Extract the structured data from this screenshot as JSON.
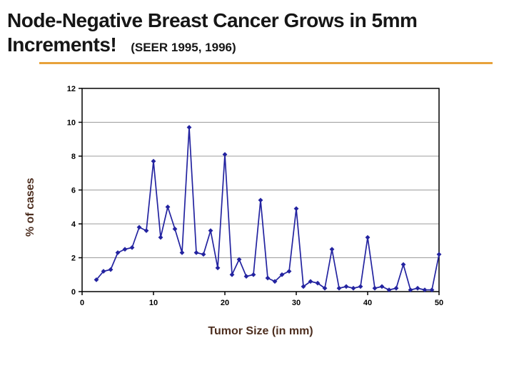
{
  "slide": {
    "title_line1": "Node-Negative Breast Cancer Grows in 5mm",
    "title_line2": "Increments!",
    "subtitle": "(SEER 1995, 1996)",
    "accent_color": "#E8A23B",
    "line_color": "#2323A0"
  },
  "chart_data": {
    "type": "line",
    "title": "",
    "xlabel": "Tumor Size (in mm)",
    "ylabel": "% of cases",
    "xlim": [
      0,
      50
    ],
    "ylim": [
      0,
      12
    ],
    "xticks": [
      0,
      10,
      20,
      30,
      40,
      50
    ],
    "yticks": [
      0,
      2,
      4,
      6,
      8,
      10,
      12
    ],
    "grid": "horizontal",
    "legend": "none",
    "marker": "diamond",
    "x": [
      2,
      3,
      4,
      5,
      6,
      7,
      8,
      9,
      10,
      11,
      12,
      13,
      14,
      15,
      16,
      17,
      18,
      19,
      20,
      21,
      22,
      23,
      24,
      25,
      26,
      27,
      28,
      29,
      30,
      31,
      32,
      33,
      34,
      35,
      36,
      37,
      38,
      39,
      40,
      41,
      42,
      43,
      44,
      45,
      46,
      47,
      48,
      49,
      50
    ],
    "y": [
      0.7,
      1.2,
      1.3,
      2.3,
      2.5,
      2.6,
      3.8,
      3.6,
      7.7,
      3.2,
      5.0,
      3.7,
      2.3,
      9.7,
      2.3,
      2.2,
      3.6,
      1.4,
      8.1,
      1.0,
      1.9,
      0.9,
      1.0,
      5.4,
      0.8,
      0.6,
      1.0,
      1.2,
      4.9,
      0.3,
      0.6,
      0.5,
      0.2,
      2.5,
      0.2,
      0.3,
      0.2,
      0.3,
      3.2,
      0.2,
      0.3,
      0.1,
      0.2,
      1.6,
      0.1,
      0.2,
      0.1,
      0.1,
      2.2
    ]
  }
}
